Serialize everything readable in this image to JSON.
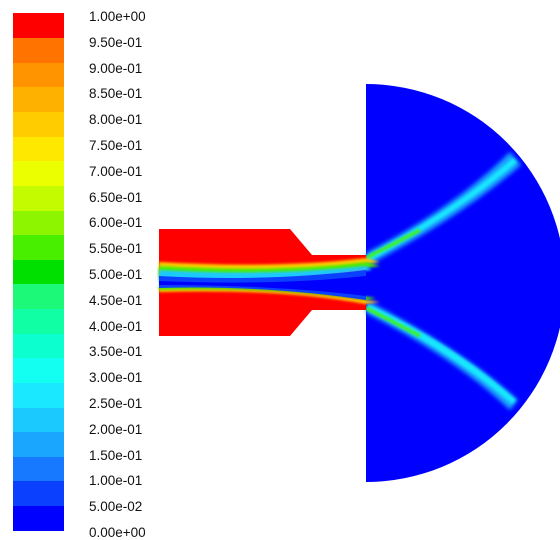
{
  "colorbar": {
    "colors": [
      "#0000ff",
      "#0b40ff",
      "#1779ff",
      "#1aa6ff",
      "#1bc9ff",
      "#19e8ff",
      "#12fff2",
      "#0cffcf",
      "#10ffa4",
      "#1cf978",
      "#00e000",
      "#48f000",
      "#8ef500",
      "#c4fb00",
      "#ecff00",
      "#ffe800",
      "#ffcc00",
      "#ffb100",
      "#ff9400",
      "#ff7300",
      "#ff0000"
    ],
    "labels": [
      "1.00e+00",
      "9.50e-01",
      "9.00e-01",
      "8.50e-01",
      "8.00e-01",
      "7.50e-01",
      "7.00e-01",
      "6.50e-01",
      "6.00e-01",
      "5.50e-01",
      "5.00e-01",
      "4.50e-01",
      "4.00e-01",
      "3.50e-01",
      "3.00e-01",
      "2.50e-01",
      "2.00e-01",
      "1.50e-01",
      "1.00e-01",
      "5.00e-02",
      "0.00e+00"
    ]
  },
  "contour": {
    "region_colors": {
      "fluid_a": "#ff0000",
      "fluid_b": "#0000ff"
    }
  }
}
